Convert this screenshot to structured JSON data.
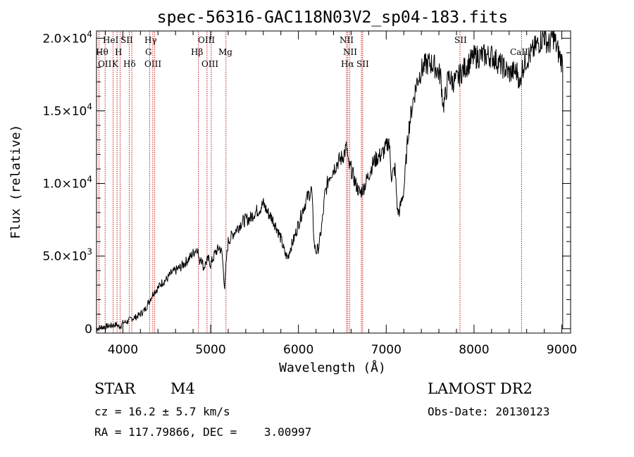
{
  "chart_data": {
    "type": "line",
    "title": "spec-56316-GAC118N03V2_sp04-183.fits",
    "xlabel": "Wavelength (Å)",
    "ylabel": "Flux (relative)",
    "xlim": [
      3700,
      9100
    ],
    "ylim": [
      -300,
      20500
    ],
    "x_ticks": [
      4000,
      5000,
      6000,
      7000,
      8000,
      9000
    ],
    "x_tick_labels": [
      "4000",
      "5000",
      "6000",
      "7000",
      "8000",
      "9000"
    ],
    "y_ticks": [
      0,
      5000,
      10000,
      15000,
      20000
    ],
    "y_tick_labels": [
      {
        "mantissa": "0",
        "exponent": ""
      },
      {
        "mantissa": "5.0×10",
        "exponent": "3"
      },
      {
        "mantissa": "1.0×10",
        "exponent": "4"
      },
      {
        "mantissa": "1.5×10",
        "exponent": "4"
      },
      {
        "mantissa": "2.0×10",
        "exponent": "4"
      }
    ],
    "grid": false,
    "series": [
      {
        "color": "#000000",
        "x": [
          3700,
          3750,
          3800,
          3850,
          3900,
          3930,
          3950,
          3980,
          4000,
          4050,
          4100,
          4150,
          4200,
          4250,
          4300,
          4350,
          4400,
          4450,
          4500,
          4550,
          4600,
          4650,
          4700,
          4750,
          4800,
          4850,
          4870,
          4890,
          4920,
          4950,
          4980,
          5000,
          5050,
          5100,
          5130,
          5160,
          5180,
          5200,
          5250,
          5300,
          5350,
          5400,
          5450,
          5500,
          5550,
          5600,
          5650,
          5700,
          5750,
          5800,
          5850,
          5880,
          5900,
          5950,
          6000,
          6050,
          6100,
          6150,
          6180,
          6200,
          6230,
          6250,
          6280,
          6300,
          6350,
          6400,
          6450,
          6500,
          6550,
          6570,
          6600,
          6650,
          6700,
          6750,
          6800,
          6850,
          6900,
          6950,
          7000,
          7030,
          7060,
          7100,
          7130,
          7150,
          7200,
          7250,
          7300,
          7350,
          7400,
          7450,
          7500,
          7550,
          7600,
          7620,
          7650,
          7680,
          7700,
          7720,
          7750,
          7800,
          7850,
          7900,
          8000,
          8100,
          8200,
          8300,
          8400,
          8450,
          8500,
          8520,
          8540,
          8600,
          8650,
          8700,
          8750,
          8800,
          8850,
          8900,
          8950,
          9000,
          9010
        ],
        "values": [
          0,
          100,
          150,
          200,
          250,
          300,
          150,
          200,
          400,
          500,
          700,
          800,
          1000,
          1300,
          1900,
          2500,
          2800,
          3200,
          3400,
          3800,
          4000,
          4200,
          4500,
          4800,
          5200,
          5600,
          4600,
          5000,
          4200,
          4600,
          4800,
          4400,
          5200,
          5600,
          5200,
          2800,
          4800,
          6000,
          6500,
          6900,
          7300,
          7500,
          7600,
          8000,
          8200,
          8600,
          8000,
          7600,
          7000,
          6200,
          5100,
          4900,
          5400,
          6200,
          7200,
          8200,
          9000,
          9600,
          5800,
          5300,
          5600,
          6400,
          7800,
          9200,
          10500,
          11000,
          11500,
          11800,
          12500,
          11200,
          11000,
          10000,
          9300,
          9800,
          10600,
          11400,
          11800,
          12000,
          12500,
          13000,
          10500,
          11000,
          8000,
          8100,
          9500,
          13500,
          15500,
          17000,
          17800,
          18200,
          18300,
          18100,
          17600,
          17400,
          15300,
          16200,
          17100,
          17400,
          17000,
          17100,
          17600,
          18000,
          18700,
          18800,
          18800,
          18200,
          17600,
          17700,
          17700,
          16500,
          17800,
          18600,
          18900,
          19400,
          19800,
          20200,
          19500,
          20200,
          19200,
          18400,
          18000
        ]
      }
    ],
    "annotations": [
      {
        "lines": [
          "OII"
        ],
        "wavelength": 3727
      },
      {
        "lines": [
          "Hθ"
        ],
        "wavelength": 3798
      },
      {
        "lines": [
          "HeI"
        ],
        "wavelength": 3889
      },
      {
        "lines": [
          "K"
        ],
        "wavelength": 3934
      },
      {
        "lines": [
          "H"
        ],
        "wavelength": 3969
      },
      {
        "lines": [
          "SII"
        ],
        "wavelength": 4072
      },
      {
        "lines": [
          "Hδ"
        ],
        "wavelength": 4102
      },
      {
        "lines": [
          "Hγ"
        ],
        "wavelength": 4341
      },
      {
        "lines": [
          "G"
        ],
        "wavelength": 4305
      },
      {
        "lines": [
          "OIII"
        ],
        "wavelength": 4363
      },
      {
        "lines": [
          "Hβ"
        ],
        "wavelength": 4861
      },
      {
        "lines": [
          "OIII"
        ],
        "wavelength": 4959
      },
      {
        "lines": [
          "OIII"
        ],
        "wavelength": 5007
      },
      {
        "lines": [
          "Mg"
        ],
        "wavelength": 5175
      },
      {
        "lines": [
          "NII"
        ],
        "wavelength": 6548
      },
      {
        "lines": [
          "Hα"
        ],
        "wavelength": 6563
      },
      {
        "lines": [
          "NII"
        ],
        "wavelength": 6583
      },
      {
        "lines": [
          "SII"
        ],
        "wavelength": 6717
      },
      {
        "lines": [
          "SII"
        ],
        "wavelength": 6731
      },
      {
        "lines": [
          "SII"
        ],
        "wavelength": 7840
      },
      {
        "lines": [
          "CaII"
        ],
        "wavelength": 8542
      }
    ]
  },
  "line_labels": {
    "OII": "OII",
    "Htheta": "Hθ",
    "HeI": "HeI",
    "K": "K",
    "H": "H",
    "SII_1": "SII",
    "Hdelta": "Hδ",
    "Hgamma": "Hγ",
    "G": "G",
    "OIII_1": "OIII",
    "Hbeta": "Hβ",
    "OIII_2": "OIII",
    "OIII_3": "OIII",
    "Mg": "Mg",
    "NII_1": "NII",
    "NII_2": "NII",
    "Halpha": "Hα",
    "SII_2": "SII",
    "SII_3": "SII",
    "CaII": "CaII"
  },
  "info": {
    "class": "STAR",
    "subclass": "M4",
    "survey": "LAMOST DR2",
    "cz": "cz = 16.2 ± 5.7 km/s",
    "obs_date": "Obs-Date: 20130123",
    "radec": "RA = 117.79866, DEC =    3.00997"
  },
  "colors": {
    "line_marker": "#cc0000",
    "spectrum": "#000000"
  }
}
